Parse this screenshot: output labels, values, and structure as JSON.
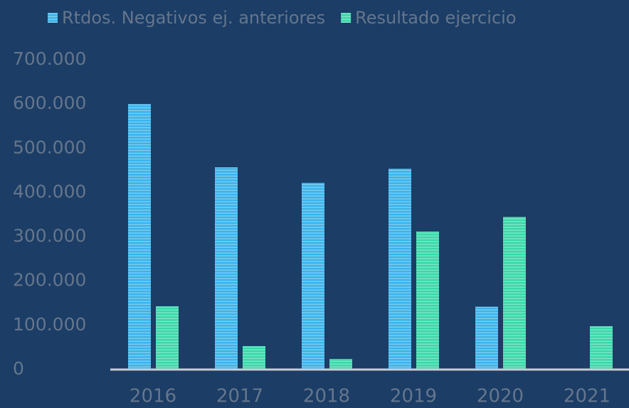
{
  "chart_data": {
    "type": "bar",
    "categories": [
      "2016",
      "2017",
      "2018",
      "2019",
      "2020",
      "2021"
    ],
    "series": [
      {
        "name": "Rtdos. Negativos ej. anteriores",
        "color": "#3cb4ea",
        "values": [
          600000,
          457000,
          422000,
          454000,
          142000,
          null
        ]
      },
      {
        "name": "Resultado ejercicio",
        "color": "#3cd8aa",
        "values": [
          143000,
          53000,
          24000,
          312000,
          345000,
          98000
        ]
      }
    ],
    "ylim": [
      0,
      700000
    ],
    "yticks": [
      0,
      {
        "value": 100000,
        "label": "100.000"
      },
      {
        "value": 200000,
        "label": "200.000"
      },
      {
        "value": 300000,
        "label": "300.000"
      },
      {
        "value": 400000,
        "label": "400.000"
      },
      {
        "value": 500000,
        "label": "500.000"
      },
      {
        "value": 600000,
        "label": "600.000"
      },
      {
        "value": 700000,
        "label": "700.000"
      }
    ],
    "grid": false,
    "legend": "top"
  }
}
